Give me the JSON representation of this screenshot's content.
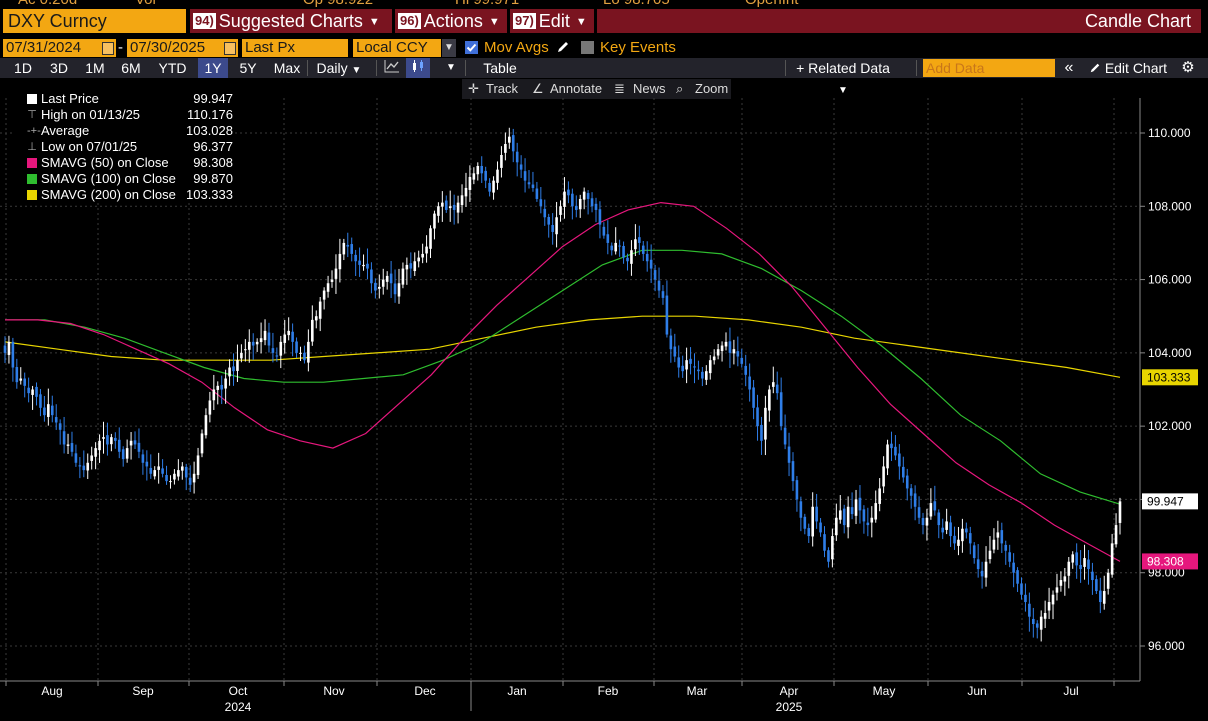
{
  "header": {
    "ticker": "DXY Curncy",
    "buttons": [
      {
        "num": "94)",
        "label": "Suggested Charts"
      },
      {
        "num": "96)",
        "label": "Actions"
      },
      {
        "num": "97)",
        "label": "Edit"
      }
    ],
    "chart_kind": "Candle Chart"
  },
  "controls": {
    "start_date": "07/31/2024",
    "end_date": "07/30/2025",
    "field": "Last Px",
    "currency": "Local CCY",
    "mov_avgs_label": "Mov Avgs",
    "key_events_label": "Key Events"
  },
  "periods": [
    "1D",
    "3D",
    "1M",
    "6M",
    "YTD",
    "1Y",
    "5Y",
    "Max"
  ],
  "selected_period": "1Y",
  "frequency": "Daily",
  "table_label": "Table",
  "related_data_label": "+ Related Data",
  "add_data_placeholder": "Add Data",
  "edit_chart_label": "Edit Chart",
  "tools": [
    "Track",
    "Annotate",
    "News",
    "Zoom"
  ],
  "legend": {
    "last": {
      "label": "Last Price",
      "value": "99.947"
    },
    "high": {
      "label": "High on 01/13/25",
      "value": "110.176"
    },
    "avg": {
      "label": "Average",
      "value": "103.028"
    },
    "low": {
      "label": "Low on 07/01/25",
      "value": "96.377"
    },
    "sma50": {
      "label": "SMAVG (50)  on Close",
      "value": "98.308"
    },
    "sma100": {
      "label": "SMAVG (100)  on Close",
      "value": "99.870"
    },
    "sma200": {
      "label": "SMAVG (200)  on Close",
      "value": "103.333"
    }
  },
  "colors": {
    "accent": "#f3a712",
    "button_red": "#7a1420",
    "candle_up": "#ffffff",
    "candle_down": "#2f7ee8",
    "sma50": "#e6177d",
    "sma100": "#2fbd2f",
    "sma200": "#e8d500"
  },
  "price_tags": [
    {
      "value": 99.947,
      "label": "99.947",
      "color": "#ffffff",
      "text_color": "#000000"
    },
    {
      "value": 103.333,
      "label": "103.333",
      "color": "#e8d500",
      "text_color": "#000000"
    },
    {
      "value": 98.308,
      "label": "98.308",
      "color": "#e6177d",
      "text_color": "#ffffff"
    }
  ],
  "chart_data": {
    "type": "candlestick",
    "y_axis": {
      "min": 95.0,
      "max": 111.5,
      "ticks": [
        "96.000",
        "98.000",
        "100.000",
        "102.000",
        "104.000",
        "106.000",
        "108.000",
        "110.000"
      ],
      "side": "right"
    },
    "x_axis": {
      "months": [
        "Aug",
        "Sep",
        "Oct",
        "Nov",
        "Dec",
        "Jan",
        "Feb",
        "Mar",
        "Apr",
        "May",
        "Jun",
        "Jul"
      ],
      "years": [
        {
          "label": "2024",
          "under": "Oct"
        },
        {
          "label": "2025",
          "under": "Apr"
        }
      ]
    },
    "grid": true,
    "legend_position": "top-left",
    "closes": [
      104.0,
      104.3,
      103.6,
      103.2,
      103.3,
      103.1,
      102.9,
      103.0,
      102.8,
      102.5,
      102.3,
      102.6,
      102.3,
      102.1,
      101.9,
      101.5,
      101.5,
      101.3,
      101.0,
      100.9,
      100.8,
      101.0,
      101.2,
      101.4,
      101.6,
      101.7,
      101.5,
      101.7,
      101.6,
      101.3,
      101.1,
      101.4,
      101.6,
      101.5,
      101.3,
      101.0,
      100.9,
      100.7,
      100.8,
      100.9,
      100.7,
      100.5,
      100.5,
      100.7,
      100.8,
      100.9,
      100.6,
      100.4,
      100.7,
      101.2,
      101.8,
      102.3,
      102.7,
      103.0,
      103.1,
      103.0,
      103.3,
      103.6,
      103.5,
      103.8,
      104.0,
      104.1,
      104.3,
      104.2,
      104.3,
      104.4,
      104.6,
      104.2,
      104.0,
      103.9,
      104.3,
      104.5,
      104.6,
      104.3,
      104.0,
      104.0,
      103.8,
      104.3,
      104.9,
      105.0,
      105.4,
      105.7,
      105.9,
      106.0,
      106.3,
      106.7,
      107.0,
      106.9,
      106.7,
      106.5,
      106.4,
      106.4,
      106.3,
      105.9,
      105.7,
      105.8,
      106.0,
      106.1,
      105.9,
      105.6,
      105.9,
      106.3,
      106.4,
      106.3,
      106.5,
      106.6,
      106.7,
      106.9,
      107.4,
      107.8,
      108.0,
      108.1,
      107.9,
      108.0,
      107.9,
      108.1,
      108.3,
      108.5,
      108.8,
      108.9,
      109.1,
      108.9,
      108.7,
      108.4,
      108.7,
      109.0,
      109.4,
      109.7,
      109.9,
      109.5,
      109.2,
      109.0,
      108.7,
      108.6,
      108.5,
      108.2,
      108.0,
      107.7,
      107.5,
      107.3,
      107.7,
      108.0,
      108.4,
      108.3,
      108.0,
      107.9,
      108.2,
      108.4,
      108.2,
      108.0,
      107.9,
      107.5,
      107.2,
      107.0,
      106.8,
      107.0,
      106.9,
      106.6,
      106.5,
      106.8,
      107.1,
      107.0,
      106.7,
      106.5,
      106.3,
      106.0,
      105.7,
      105.5,
      104.5,
      104.1,
      103.9,
      103.6,
      103.5,
      103.8,
      103.7,
      103.6,
      103.5,
      103.3,
      103.5,
      103.8,
      103.9,
      104.1,
      104.2,
      104.3,
      104.0,
      104.1,
      103.9,
      103.7,
      103.4,
      103.0,
      102.5,
      102.0,
      101.6,
      102.5,
      103.0,
      103.2,
      102.9,
      102.0,
      101.5,
      101.0,
      100.5,
      100.0,
      99.5,
      99.2,
      99.0,
      99.8,
      99.4,
      99.1,
      98.6,
      98.3,
      99.0,
      99.5,
      99.7,
      99.3,
      99.8,
      99.6,
      100.0,
      99.7,
      99.4,
      99.3,
      99.5,
      99.9,
      100.3,
      100.9,
      101.5,
      101.4,
      101.2,
      100.9,
      100.6,
      100.3,
      100.1,
      99.8,
      99.5,
      99.3,
      99.5,
      99.9,
      99.7,
      99.3,
      99.1,
      99.4,
      99.0,
      98.8,
      98.9,
      99.2,
      99.1,
      98.8,
      98.4,
      98.1,
      97.9,
      98.3,
      98.6,
      98.9,
      99.1,
      98.8,
      98.6,
      98.3,
      98.0,
      97.7,
      97.4,
      97.2,
      96.8,
      96.6,
      96.5,
      96.8,
      96.9,
      97.2,
      97.4,
      97.6,
      97.8,
      97.9,
      98.3,
      98.5,
      98.2,
      98.1,
      98.4,
      98.1,
      97.8,
      97.5,
      97.2,
      97.5,
      98.0,
      98.8,
      99.3,
      99.947
    ],
    "sma50": [
      104.9,
      104.9,
      104.8,
      104.5,
      104.1,
      103.7,
      103.2,
      102.5,
      101.9,
      101.6,
      101.4,
      101.8,
      102.6,
      103.4,
      104.4,
      105.3,
      106.1,
      106.9,
      107.5,
      107.9,
      108.1,
      108.0,
      107.4,
      106.7,
      105.8,
      104.7,
      103.6,
      102.6,
      101.8,
      101.0,
      100.4,
      99.9,
      99.3,
      98.8,
      98.308
    ],
    "sma100": [
      104.9,
      104.9,
      104.7,
      104.4,
      104.0,
      103.6,
      103.3,
      103.2,
      103.2,
      103.3,
      103.4,
      103.8,
      104.3,
      105.0,
      105.7,
      106.4,
      106.8,
      106.8,
      106.7,
      106.3,
      105.7,
      105.0,
      104.2,
      103.3,
      102.3,
      101.6,
      100.7,
      100.2,
      99.87
    ],
    "sma200": [
      104.3,
      104.1,
      103.9,
      103.8,
      103.8,
      103.8,
      103.9,
      104.0,
      104.1,
      104.4,
      104.7,
      104.9,
      105.0,
      105.0,
      104.9,
      104.7,
      104.4,
      104.2,
      104.0,
      103.8,
      103.6,
      103.333
    ]
  }
}
